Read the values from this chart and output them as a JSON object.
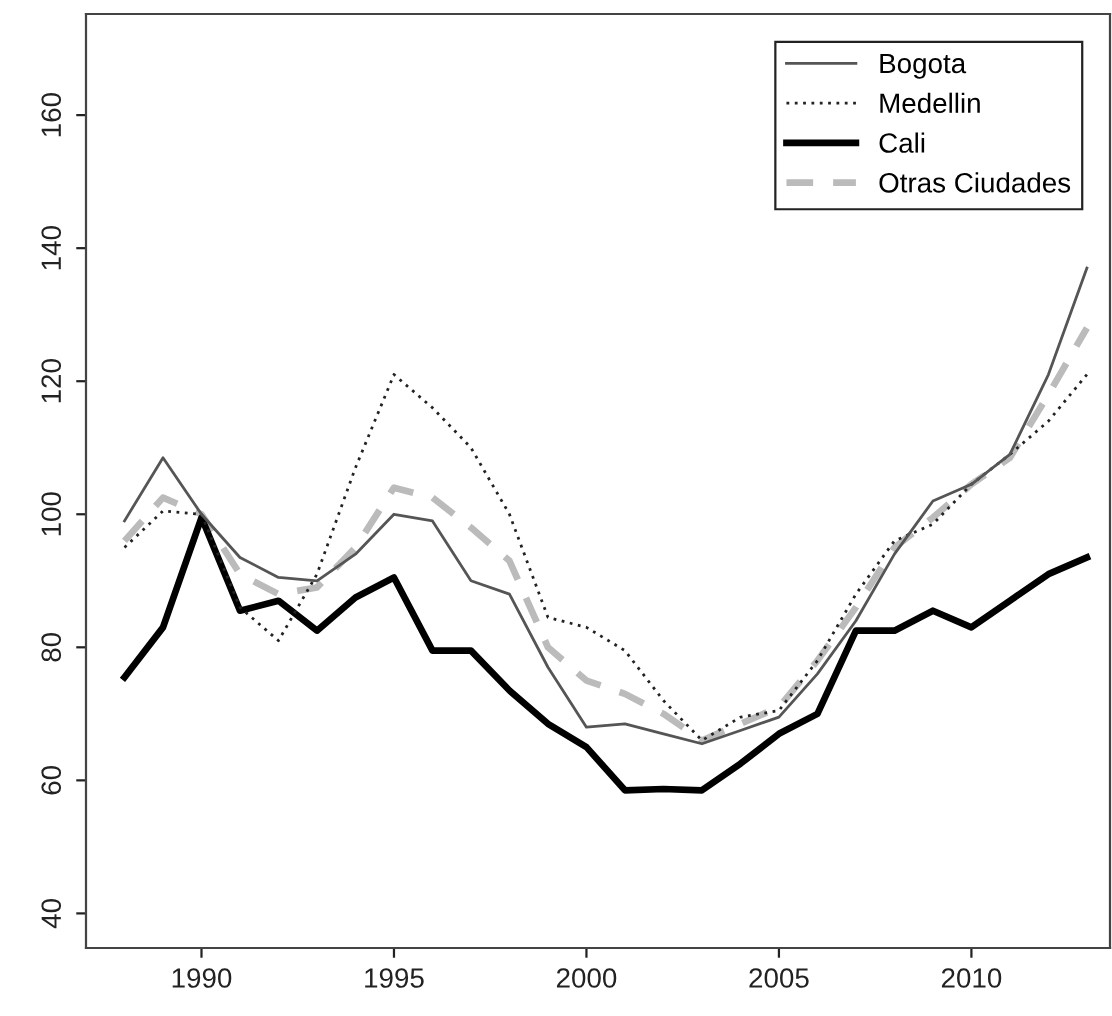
{
  "chart_data": {
    "type": "line",
    "x": [
      1988,
      1989,
      1990,
      1991,
      1992,
      1993,
      1994,
      1995,
      1996,
      1997,
      1998,
      1999,
      2000,
      2001,
      2002,
      2003,
      2004,
      2005,
      2006,
      2007,
      2008,
      2009,
      2010,
      2011,
      2012,
      2013
    ],
    "series": [
      {
        "name": "Bogota",
        "color": "#555555",
        "line_style": "solid",
        "values": [
          99,
          108.5,
          100,
          93.5,
          90.5,
          90,
          94,
          100,
          99,
          90,
          88,
          77,
          68,
          68.5,
          67,
          65.5,
          67.5,
          69.5,
          76,
          84,
          94,
          102,
          104.5,
          109,
          121,
          137
        ]
      },
      {
        "name": "Medellin",
        "color": "#222222",
        "line_style": "dotted",
        "values": [
          95,
          100.5,
          100,
          86,
          81,
          91,
          107,
          121,
          116,
          110,
          100,
          84.5,
          83,
          79.5,
          72,
          66,
          69.5,
          70.5,
          78,
          88,
          96,
          98.5,
          104.5,
          109,
          114,
          121
        ]
      },
      {
        "name": "Cali",
        "color": "#000000",
        "line_style": "solid",
        "values": [
          75.5,
          83,
          99.5,
          85.5,
          87,
          82.5,
          87.5,
          90.5,
          79.5,
          79.5,
          73.5,
          68.5,
          65,
          58.5,
          58.7,
          58.5,
          62.5,
          67,
          70,
          82.5,
          82.5,
          85.5,
          83,
          87,
          91,
          93.5
        ]
      },
      {
        "name": "Otras Ciudades",
        "color": "#bbbbbb",
        "line_style": "dashed",
        "values": [
          96,
          102.5,
          100,
          91,
          88,
          89,
          95,
          104,
          102.5,
          98,
          93,
          80,
          75,
          73,
          70,
          66,
          68.5,
          71,
          78,
          86,
          95,
          99.5,
          104.5,
          108.5,
          118,
          128
        ]
      }
    ],
    "xlim": [
      1987,
      2013.6
    ],
    "ylim": [
      34.8,
      175.2
    ],
    "xticks": [
      1990,
      1995,
      2000,
      2005,
      2010
    ],
    "yticks": [
      40,
      60,
      80,
      100,
      120,
      140,
      160
    ],
    "grid": false,
    "legend": "top right",
    "marker": "none"
  }
}
